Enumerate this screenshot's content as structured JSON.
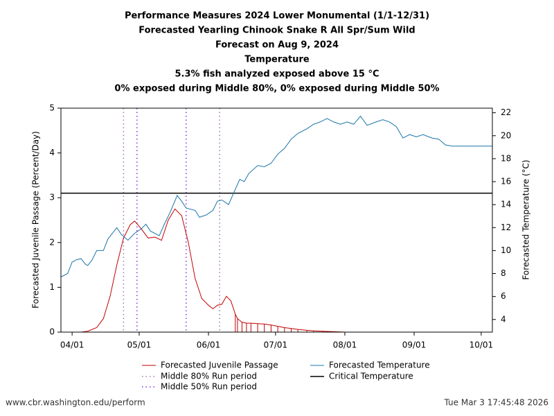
{
  "chart_data": {
    "type": "line",
    "title": "Performance Measures 2024 Lower Monumental (1/1-12/31)",
    "subtitle": [
      "Forecasted Yearling Chinook Snake R All Spr/Sum Wild",
      "Forecast on Aug 9, 2024",
      "Temperature",
      "5.3% fish analyzed exposed above 15 °C",
      "0% exposed during Middle 80%, 0% exposed during Middle 50%"
    ],
    "ylabel": "Forecasted Juvenile Passage (Percent/Day)",
    "y2label": "Forecasted Temperature (°C)",
    "xlim": [
      "03/27",
      "10/06"
    ],
    "xticks": [
      "04/01",
      "05/01",
      "06/01",
      "07/01",
      "08/01",
      "09/01",
      "10/01"
    ],
    "ylim": [
      0,
      5
    ],
    "yticks": [
      0,
      1,
      2,
      3,
      4,
      5
    ],
    "y2lim": [
      2.9,
      22.4
    ],
    "y2ticks": [
      4,
      6,
      8,
      10,
      12,
      14,
      16,
      18,
      20,
      22
    ],
    "series": [
      {
        "name": "Forecasted Juvenile Passage",
        "color": "#c00000",
        "x": [
          "03/27",
          "04/05",
          "04/08",
          "04/12",
          "04/15",
          "04/18",
          "04/21",
          "04/24",
          "04/27",
          "04/29",
          "05/02",
          "05/05",
          "05/08",
          "05/11",
          "05/14",
          "05/17",
          "05/20",
          "05/23",
          "05/26",
          "05/29",
          "06/01",
          "06/03",
          "06/05",
          "06/07",
          "06/09",
          "06/11",
          "06/13",
          "06/14",
          "06/16",
          "06/18",
          "06/20",
          "06/23",
          "06/26",
          "06/29",
          "07/02",
          "07/05",
          "07/08",
          "07/11",
          "07/15",
          "07/18",
          "07/22",
          "07/27",
          "08/01",
          "10/06"
        ],
        "values": [
          0,
          0,
          0.02,
          0.1,
          0.3,
          0.8,
          1.5,
          2.1,
          2.4,
          2.48,
          2.3,
          2.1,
          2.12,
          2.05,
          2.5,
          2.75,
          2.6,
          2.0,
          1.2,
          0.75,
          0.6,
          0.52,
          0.6,
          0.62,
          0.8,
          0.7,
          0.4,
          0.3,
          0.22,
          0.2,
          0.2,
          0.19,
          0.18,
          0.16,
          0.13,
          0.1,
          0.08,
          0.06,
          0.04,
          0.03,
          0.02,
          0.01,
          0,
          0
        ]
      },
      {
        "name": "Forecasted Temperature",
        "color": "#1a74a8",
        "axis": "y2",
        "x": [
          "03/27",
          "03/30",
          "04/01",
          "04/03",
          "04/05",
          "04/07",
          "04/08",
          "04/10",
          "04/12",
          "04/14",
          "04/15",
          "04/17",
          "04/21",
          "04/23",
          "04/26",
          "04/29",
          "05/02",
          "05/04",
          "05/06",
          "05/10",
          "05/12",
          "05/15",
          "05/18",
          "05/20",
          "05/22",
          "05/26",
          "05/28",
          "05/31",
          "06/03",
          "06/05",
          "06/07",
          "06/10",
          "06/12",
          "06/15",
          "06/17",
          "06/19",
          "06/23",
          "06/26",
          "06/29",
          "07/02",
          "07/05",
          "07/08",
          "07/11",
          "07/15",
          "07/18",
          "07/21",
          "07/24",
          "07/27",
          "07/30",
          "08/02",
          "08/05",
          "08/08",
          "08/11",
          "08/15",
          "08/18",
          "08/21",
          "08/24",
          "08/27",
          "08/30",
          "09/02",
          "09/05",
          "09/09",
          "09/12",
          "09/15",
          "09/18",
          "09/21",
          "10/06"
        ],
        "values": [
          7.7,
          8.0,
          9.0,
          9.2,
          9.3,
          8.8,
          8.7,
          9.2,
          10.0,
          10.0,
          10.0,
          11.0,
          12.0,
          11.4,
          10.9,
          11.5,
          11.9,
          12.3,
          11.7,
          11.3,
          12.2,
          13.4,
          14.8,
          14.3,
          13.7,
          13.5,
          12.9,
          13.1,
          13.5,
          14.3,
          14.4,
          14.0,
          14.9,
          16.2,
          16.0,
          16.7,
          17.4,
          17.3,
          17.6,
          18.4,
          18.9,
          19.7,
          20.2,
          20.6,
          21.0,
          21.2,
          21.5,
          21.2,
          21.0,
          21.2,
          21.0,
          21.7,
          20.9,
          21.2,
          21.4,
          21.2,
          20.8,
          19.8,
          20.1,
          19.9,
          20.1,
          19.8,
          19.7,
          19.2,
          19.1,
          19.1,
          19.1
        ]
      }
    ],
    "critical": {
      "name": "Critical Temperature",
      "color": "#000000",
      "axis": "y2",
      "value": 15
    },
    "run_periods": [
      {
        "name": "Middle 80% Run period",
        "color": "#a070b0",
        "x": [
          "04/24",
          "06/06"
        ]
      },
      {
        "name": "Middle 50% Run period",
        "color": "#8a2be2",
        "x": [
          "04/30",
          "05/22"
        ]
      }
    ]
  },
  "footer": {
    "left": "www.cbr.washington.edu/perform",
    "right": "Tue Mar  3 17:45:48 2026"
  }
}
